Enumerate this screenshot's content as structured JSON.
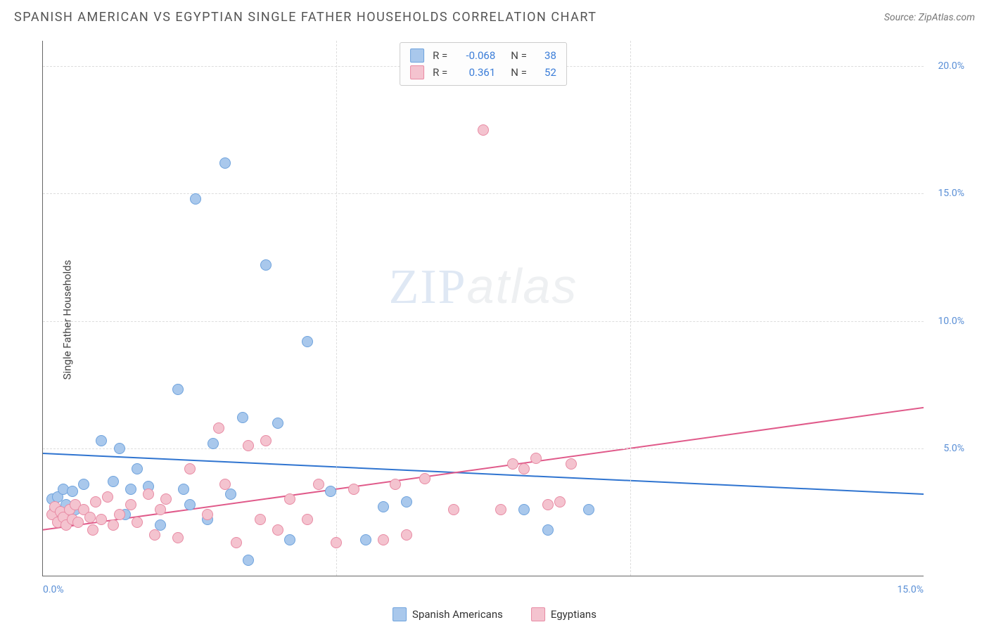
{
  "title": "SPANISH AMERICAN VS EGYPTIAN SINGLE FATHER HOUSEHOLDS CORRELATION CHART",
  "source": "Source: ZipAtlas.com",
  "ylabel": "Single Father Households",
  "watermark": {
    "zip": "ZIP",
    "atlas": "atlas"
  },
  "chart": {
    "type": "scatter",
    "xlim": [
      0,
      15
    ],
    "ylim": [
      0,
      21
    ],
    "xticks": [
      {
        "v": 0,
        "label": "0.0%"
      },
      {
        "v": 15,
        "label": "15.0%"
      }
    ],
    "yticks": [
      {
        "v": 5,
        "label": "5.0%"
      },
      {
        "v": 10,
        "label": "10.0%"
      },
      {
        "v": 15,
        "label": "15.0%"
      },
      {
        "v": 20,
        "label": "20.0%"
      }
    ],
    "vgrid_at": [
      5,
      10
    ],
    "background_color": "#ffffff",
    "grid_color": "#dddddd",
    "marker_radius": 8,
    "marker_border_width": 1.5,
    "marker_fill_opacity": 0.25,
    "series": [
      {
        "name": "Spanish Americans",
        "color_fill": "#a9c8ec",
        "color_border": "#6fa3dd",
        "R": "-0.068",
        "N": "38",
        "trend": {
          "x1": 0,
          "y1": 4.8,
          "x2": 15,
          "y2": 3.2,
          "width": 2,
          "color": "#2f74d0"
        },
        "points": [
          [
            0.15,
            3.0
          ],
          [
            0.2,
            2.6
          ],
          [
            0.25,
            3.1
          ],
          [
            0.3,
            2.5
          ],
          [
            0.35,
            3.4
          ],
          [
            0.4,
            2.8
          ],
          [
            0.5,
            3.3
          ],
          [
            0.55,
            2.6
          ],
          [
            0.7,
            3.6
          ],
          [
            1.0,
            5.3
          ],
          [
            1.2,
            3.7
          ],
          [
            1.3,
            5.0
          ],
          [
            1.4,
            2.4
          ],
          [
            1.5,
            3.4
          ],
          [
            1.6,
            4.2
          ],
          [
            1.8,
            3.5
          ],
          [
            2.0,
            2.0
          ],
          [
            2.3,
            7.3
          ],
          [
            2.4,
            3.4
          ],
          [
            2.5,
            2.8
          ],
          [
            2.6,
            14.8
          ],
          [
            2.8,
            2.2
          ],
          [
            2.9,
            5.2
          ],
          [
            3.1,
            16.2
          ],
          [
            3.2,
            3.2
          ],
          [
            3.4,
            6.2
          ],
          [
            3.5,
            0.6
          ],
          [
            3.8,
            12.2
          ],
          [
            4.0,
            6.0
          ],
          [
            4.2,
            1.4
          ],
          [
            4.5,
            9.2
          ],
          [
            4.9,
            3.3
          ],
          [
            5.5,
            1.4
          ],
          [
            5.8,
            2.7
          ],
          [
            6.2,
            2.9
          ],
          [
            8.2,
            2.6
          ],
          [
            8.6,
            1.8
          ],
          [
            9.3,
            2.6
          ]
        ]
      },
      {
        "name": "Egyptians",
        "color_fill": "#f4c3cf",
        "color_border": "#e88ba4",
        "R": "0.361",
        "N": "52",
        "trend": {
          "x1": 0,
          "y1": 1.8,
          "x2": 15,
          "y2": 6.6,
          "width": 2,
          "color": "#e05a8a"
        },
        "points": [
          [
            0.15,
            2.4
          ],
          [
            0.2,
            2.7
          ],
          [
            0.25,
            2.1
          ],
          [
            0.3,
            2.5
          ],
          [
            0.35,
            2.3
          ],
          [
            0.4,
            2.0
          ],
          [
            0.45,
            2.6
          ],
          [
            0.5,
            2.2
          ],
          [
            0.55,
            2.8
          ],
          [
            0.6,
            2.1
          ],
          [
            0.7,
            2.6
          ],
          [
            0.8,
            2.3
          ],
          [
            0.85,
            1.8
          ],
          [
            0.9,
            2.9
          ],
          [
            1.0,
            2.2
          ],
          [
            1.1,
            3.1
          ],
          [
            1.2,
            2.0
          ],
          [
            1.3,
            2.4
          ],
          [
            1.5,
            2.8
          ],
          [
            1.6,
            2.1
          ],
          [
            1.8,
            3.2
          ],
          [
            1.9,
            1.6
          ],
          [
            2.0,
            2.6
          ],
          [
            2.1,
            3.0
          ],
          [
            2.3,
            1.5
          ],
          [
            2.5,
            4.2
          ],
          [
            2.8,
            2.4
          ],
          [
            3.0,
            5.8
          ],
          [
            3.1,
            3.6
          ],
          [
            3.3,
            1.3
          ],
          [
            3.5,
            5.1
          ],
          [
            3.7,
            2.2
          ],
          [
            3.8,
            5.3
          ],
          [
            4.0,
            1.8
          ],
          [
            4.2,
            3.0
          ],
          [
            4.5,
            2.2
          ],
          [
            4.7,
            3.6
          ],
          [
            5.0,
            1.3
          ],
          [
            5.3,
            3.4
          ],
          [
            5.8,
            1.4
          ],
          [
            6.0,
            3.6
          ],
          [
            6.2,
            1.6
          ],
          [
            6.5,
            3.8
          ],
          [
            7.0,
            2.6
          ],
          [
            7.5,
            17.5
          ],
          [
            7.8,
            2.6
          ],
          [
            8.0,
            4.4
          ],
          [
            8.2,
            4.2
          ],
          [
            8.4,
            4.6
          ],
          [
            8.8,
            2.9
          ],
          [
            9.0,
            4.4
          ],
          [
            8.6,
            2.8
          ]
        ]
      }
    ]
  },
  "stats_box": {
    "rows": [
      {
        "swatch_fill": "#a9c8ec",
        "swatch_border": "#6fa3dd",
        "r_label": "R =",
        "r_val": "-0.068",
        "n_label": "N =",
        "n_val": "38"
      },
      {
        "swatch_fill": "#f4c3cf",
        "swatch_border": "#e88ba4",
        "r_label": "R =",
        "r_val": "0.361",
        "n_label": "N =",
        "n_val": "52"
      }
    ]
  },
  "legend": [
    {
      "swatch_fill": "#a9c8ec",
      "swatch_border": "#6fa3dd",
      "label": "Spanish Americans"
    },
    {
      "swatch_fill": "#f4c3cf",
      "swatch_border": "#e88ba4",
      "label": "Egyptians"
    }
  ]
}
